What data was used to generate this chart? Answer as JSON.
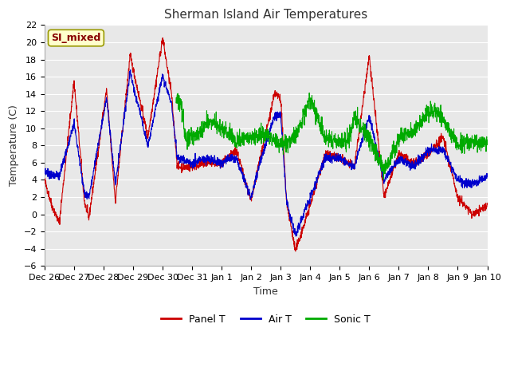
{
  "title": "Sherman Island Air Temperatures",
  "xlabel": "Time",
  "ylabel": "Temperature (C)",
  "xlabels": [
    "Dec 26",
    "Dec 27",
    "Dec 28",
    "Dec 29",
    "Dec 30",
    "Dec 31",
    "Jan 1",
    "Jan 2",
    "Jan 3",
    "Jan 4",
    "Jan 5",
    "Jan 6",
    "Jan 7",
    "Jan 8",
    "Jan 9",
    "Jan 10"
  ],
  "ylim": [
    -6,
    22
  ],
  "yticks": [
    -6,
    -4,
    -2,
    0,
    2,
    4,
    6,
    8,
    10,
    12,
    14,
    16,
    18,
    20,
    22
  ],
  "panel_t_color": "#cc0000",
  "air_t_color": "#0000cc",
  "sonic_t_color": "#00aa00",
  "fig_bg_color": "#ffffff",
  "plot_bg_color": "#e8e8e8",
  "grid_color": "#ffffff",
  "annotation_text": "SI_mixed",
  "annotation_bg": "#ffffcc",
  "annotation_border": "#999900",
  "annotation_text_color": "#880000",
  "legend_entries": [
    "Panel T",
    "Air T",
    "Sonic T"
  ],
  "title_fontsize": 11,
  "axis_label_fontsize": 9,
  "tick_fontsize": 8
}
